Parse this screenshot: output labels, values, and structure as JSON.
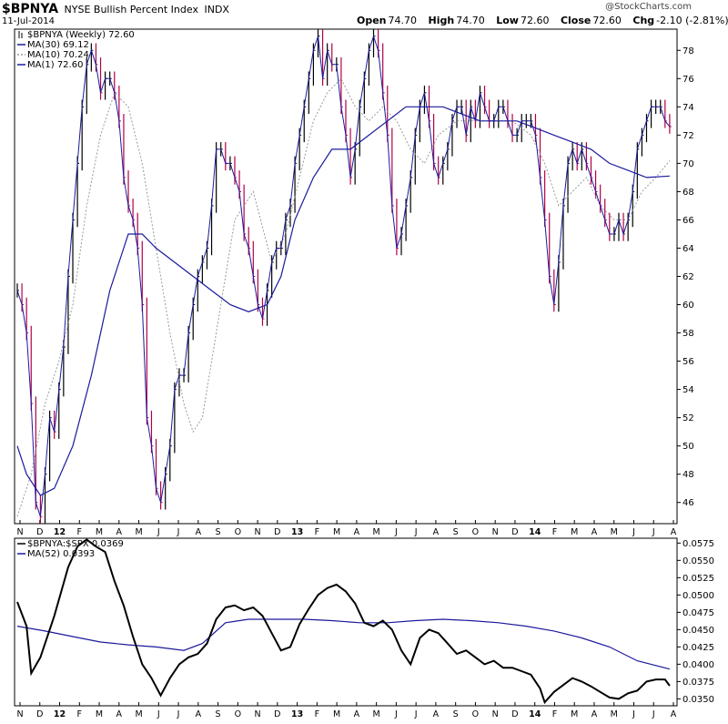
{
  "header": {
    "symbol": "$BPNYA",
    "name": "NYSE Bullish Percent Index",
    "exchange": "INDX",
    "date": "11-Jul-2014",
    "open_label": "Open",
    "open": "74.70",
    "high_label": "High",
    "high": "74.70",
    "low_label": "Low",
    "low": "72.60",
    "close_label": "Close",
    "close": "72.60",
    "chg_label": "Chg",
    "chg": "-2.10 (-2.81%)",
    "credit": "@StockCharts.com"
  },
  "colors": {
    "price": "#000000",
    "down": "#b0004a",
    "ma30": "#1a1a9c",
    "ma10": "#999999",
    "ratio": "#000000",
    "ratio_ma": "#1a1a9c"
  },
  "chart_data": [
    {
      "type": "line",
      "panel": "price",
      "legend": [
        {
          "text": "$BPNYA (Weekly) 72.60",
          "icon": "bar-icon"
        },
        {
          "text": "MA(30) 69.12",
          "style": "solid"
        },
        {
          "text": "MA(10) 70.24",
          "style": "dotted"
        },
        {
          "text": "MA(1) 72.60",
          "style": "solid"
        }
      ],
      "ylim": [
        44.5,
        79.5
      ],
      "yticks": [
        46,
        48,
        50,
        52,
        54,
        56,
        58,
        60,
        62,
        64,
        66,
        68,
        70,
        72,
        74,
        76,
        78
      ],
      "x_labels": [
        "N",
        "D",
        "12",
        "F",
        "M",
        "A",
        "M",
        "J",
        "J",
        "A",
        "S",
        "O",
        "N",
        "D",
        "13",
        "F",
        "M",
        "A",
        "M",
        "J",
        "J",
        "A",
        "S",
        "O",
        "N",
        "D",
        "14",
        "F",
        "M",
        "A",
        "M",
        "J",
        "J",
        "A"
      ],
      "x_bold": [
        "12",
        "13",
        "14"
      ],
      "n_weeks": 143,
      "anchors": [
        [
          0,
          61
        ],
        [
          1,
          60
        ],
        [
          2,
          58
        ],
        [
          3,
          53
        ],
        [
          4,
          46
        ],
        [
          5,
          45
        ],
        [
          6,
          48
        ],
        [
          7,
          52
        ],
        [
          8,
          51
        ],
        [
          9,
          54
        ],
        [
          10,
          57
        ],
        [
          11,
          62
        ],
        [
          12,
          66
        ],
        [
          13,
          70
        ],
        [
          14,
          74
        ],
        [
          15,
          77
        ],
        [
          16,
          78
        ],
        [
          17,
          77
        ],
        [
          18,
          75
        ],
        [
          19,
          76
        ],
        [
          20,
          76
        ],
        [
          21,
          75
        ],
        [
          22,
          73
        ],
        [
          23,
          69
        ],
        [
          24,
          67
        ],
        [
          25,
          66
        ],
        [
          26,
          64
        ],
        [
          27,
          60
        ],
        [
          28,
          52
        ],
        [
          29,
          50
        ],
        [
          30,
          47
        ],
        [
          31,
          46
        ],
        [
          32,
          48
        ],
        [
          33,
          50
        ],
        [
          34,
          54
        ],
        [
          35,
          55
        ],
        [
          36,
          55
        ],
        [
          37,
          58
        ],
        [
          38,
          60
        ],
        [
          39,
          62
        ],
        [
          40,
          63
        ],
        [
          41,
          64
        ],
        [
          42,
          67
        ],
        [
          43,
          71
        ],
        [
          44,
          71
        ],
        [
          45,
          70
        ],
        [
          46,
          70
        ],
        [
          47,
          69
        ],
        [
          48,
          68
        ],
        [
          49,
          65
        ],
        [
          50,
          64
        ],
        [
          51,
          62
        ],
        [
          52,
          60
        ],
        [
          53,
          59
        ],
        [
          54,
          61
        ],
        [
          55,
          63
        ],
        [
          56,
          64
        ],
        [
          57,
          64
        ],
        [
          58,
          66
        ],
        [
          59,
          67
        ],
        [
          60,
          70
        ],
        [
          61,
          72
        ],
        [
          62,
          74
        ],
        [
          63,
          76
        ],
        [
          64,
          78
        ],
        [
          65,
          79
        ],
        [
          66,
          76
        ],
        [
          67,
          78
        ],
        [
          68,
          77
        ],
        [
          69,
          77
        ],
        [
          70,
          74
        ],
        [
          71,
          72
        ],
        [
          72,
          69
        ],
        [
          73,
          71
        ],
        [
          74,
          74
        ],
        [
          75,
          76
        ],
        [
          76,
          78
        ],
        [
          77,
          79
        ],
        [
          78,
          78
        ],
        [
          79,
          75
        ],
        [
          80,
          72
        ],
        [
          81,
          67
        ],
        [
          82,
          64
        ],
        [
          83,
          65
        ],
        [
          84,
          67
        ],
        [
          85,
          69
        ],
        [
          86,
          72
        ],
        [
          87,
          74
        ],
        [
          88,
          75
        ],
        [
          89,
          73
        ],
        [
          90,
          70
        ],
        [
          91,
          69
        ],
        [
          92,
          70
        ],
        [
          93,
          71
        ],
        [
          94,
          73
        ],
        [
          95,
          74
        ],
        [
          96,
          74
        ],
        [
          97,
          72
        ],
        [
          98,
          74
        ],
        [
          99,
          73
        ],
        [
          100,
          75
        ],
        [
          101,
          74
        ],
        [
          102,
          73
        ],
        [
          103,
          73
        ],
        [
          104,
          74
        ],
        [
          105,
          74
        ],
        [
          106,
          73
        ],
        [
          107,
          72
        ],
        [
          108,
          72
        ],
        [
          109,
          73
        ],
        [
          110,
          73
        ],
        [
          111,
          73
        ],
        [
          112,
          72
        ],
        [
          113,
          69
        ],
        [
          114,
          66
        ],
        [
          115,
          62
        ],
        [
          116,
          60
        ],
        [
          117,
          63
        ],
        [
          118,
          67
        ],
        [
          119,
          70
        ],
        [
          120,
          71
        ],
        [
          121,
          70
        ],
        [
          122,
          71
        ],
        [
          123,
          70
        ],
        [
          124,
          69
        ],
        [
          125,
          68
        ],
        [
          126,
          67
        ],
        [
          127,
          66
        ],
        [
          128,
          65
        ],
        [
          129,
          65
        ],
        [
          130,
          66
        ],
        [
          131,
          65
        ],
        [
          132,
          66
        ],
        [
          133,
          68
        ],
        [
          134,
          71
        ],
        [
          135,
          72
        ],
        [
          136,
          73
        ],
        [
          137,
          74
        ],
        [
          138,
          74
        ],
        [
          139,
          74
        ],
        [
          140,
          73
        ],
        [
          141,
          72.6
        ]
      ],
      "ma30": [
        [
          0,
          50
        ],
        [
          2,
          48
        ],
        [
          5,
          46.5
        ],
        [
          8,
          47
        ],
        [
          12,
          50
        ],
        [
          16,
          55
        ],
        [
          20,
          61
        ],
        [
          24,
          65
        ],
        [
          27,
          65
        ],
        [
          30,
          64
        ],
        [
          34,
          63
        ],
        [
          38,
          62
        ],
        [
          42,
          61
        ],
        [
          46,
          60
        ],
        [
          50,
          59.5
        ],
        [
          54,
          60
        ],
        [
          57,
          62
        ],
        [
          60,
          66
        ],
        [
          64,
          69
        ],
        [
          68,
          71
        ],
        [
          72,
          71
        ],
        [
          76,
          72
        ],
        [
          80,
          73
        ],
        [
          84,
          74
        ],
        [
          88,
          74
        ],
        [
          92,
          74
        ],
        [
          96,
          73.5
        ],
        [
          100,
          73
        ],
        [
          104,
          73
        ],
        [
          108,
          73
        ],
        [
          112,
          72.5
        ],
        [
          116,
          72
        ],
        [
          120,
          71.5
        ],
        [
          124,
          71
        ],
        [
          128,
          70
        ],
        [
          132,
          69.5
        ],
        [
          136,
          69
        ],
        [
          141,
          69.1
        ]
      ],
      "ma10": [
        [
          0,
          45
        ],
        [
          3,
          48
        ],
        [
          6,
          53
        ],
        [
          9,
          56
        ],
        [
          12,
          60
        ],
        [
          15,
          67
        ],
        [
          18,
          72
        ],
        [
          21,
          75
        ],
        [
          24,
          74
        ],
        [
          27,
          70
        ],
        [
          30,
          64
        ],
        [
          33,
          58
        ],
        [
          36,
          53
        ],
        [
          38,
          51
        ],
        [
          40,
          52
        ],
        [
          43,
          58
        ],
        [
          47,
          66
        ],
        [
          51,
          68
        ],
        [
          55,
          63
        ],
        [
          58,
          65
        ],
        [
          61,
          69
        ],
        [
          64,
          73
        ],
        [
          67,
          75
        ],
        [
          70,
          76
        ],
        [
          73,
          74
        ],
        [
          76,
          73
        ],
        [
          79,
          74
        ],
        [
          82,
          73
        ],
        [
          85,
          71
        ],
        [
          88,
          70
        ],
        [
          91,
          72
        ],
        [
          95,
          73
        ],
        [
          99,
          73
        ],
        [
          103,
          73
        ],
        [
          107,
          73
        ],
        [
          111,
          72
        ],
        [
          114,
          70
        ],
        [
          117,
          67
        ],
        [
          120,
          68
        ],
        [
          123,
          69
        ],
        [
          126,
          67
        ],
        [
          129,
          66
        ],
        [
          132,
          66
        ],
        [
          135,
          68
        ],
        [
          138,
          69
        ],
        [
          141,
          70.2
        ]
      ]
    },
    {
      "type": "line",
      "panel": "ratio",
      "legend": [
        {
          "text": "$BPNYA:$SPX 0.0369",
          "style": "solid"
        },
        {
          "text": "MA(52) 0.0393",
          "style": "solid"
        }
      ],
      "ylim": [
        0.034,
        0.0582
      ],
      "yticks": [
        "0.0575",
        "0.0550",
        "0.0525",
        "0.0500",
        "0.0475",
        "0.0450",
        "0.0425",
        "0.0400",
        "0.0375",
        "0.0350"
      ],
      "ratio": [
        [
          0,
          0.049
        ],
        [
          2,
          0.0455
        ],
        [
          3,
          0.0387
        ],
        [
          5,
          0.041
        ],
        [
          8,
          0.047
        ],
        [
          11,
          0.054
        ],
        [
          13,
          0.057
        ],
        [
          15,
          0.058
        ],
        [
          17,
          0.057
        ],
        [
          19,
          0.0562
        ],
        [
          21,
          0.052
        ],
        [
          23,
          0.0485
        ],
        [
          25,
          0.044
        ],
        [
          27,
          0.04
        ],
        [
          29,
          0.038
        ],
        [
          31,
          0.0355
        ],
        [
          33,
          0.038
        ],
        [
          35,
          0.04
        ],
        [
          37,
          0.041
        ],
        [
          39,
          0.0415
        ],
        [
          41,
          0.043
        ],
        [
          43,
          0.0465
        ],
        [
          45,
          0.0482
        ],
        [
          47,
          0.0485
        ],
        [
          49,
          0.0478
        ],
        [
          51,
          0.0482
        ],
        [
          53,
          0.047
        ],
        [
          55,
          0.0445
        ],
        [
          57,
          0.042
        ],
        [
          59,
          0.0425
        ],
        [
          61,
          0.0458
        ],
        [
          63,
          0.048
        ],
        [
          65,
          0.05
        ],
        [
          67,
          0.051
        ],
        [
          69,
          0.0515
        ],
        [
          71,
          0.0505
        ],
        [
          73,
          0.0488
        ],
        [
          75,
          0.046
        ],
        [
          77,
          0.0455
        ],
        [
          79,
          0.0463
        ],
        [
          81,
          0.045
        ],
        [
          83,
          0.042
        ],
        [
          85,
          0.04
        ],
        [
          87,
          0.0438
        ],
        [
          89,
          0.045
        ],
        [
          91,
          0.0445
        ],
        [
          93,
          0.043
        ],
        [
          95,
          0.0415
        ],
        [
          97,
          0.042
        ],
        [
          99,
          0.041
        ],
        [
          101,
          0.04
        ],
        [
          103,
          0.0405
        ],
        [
          105,
          0.0395
        ],
        [
          107,
          0.0395
        ],
        [
          109,
          0.039
        ],
        [
          111,
          0.0385
        ],
        [
          113,
          0.0365
        ],
        [
          114,
          0.0345
        ],
        [
          116,
          0.036
        ],
        [
          118,
          0.037
        ],
        [
          120,
          0.038
        ],
        [
          122,
          0.0375
        ],
        [
          124,
          0.0368
        ],
        [
          126,
          0.036
        ],
        [
          128,
          0.0352
        ],
        [
          130,
          0.035
        ],
        [
          132,
          0.0358
        ],
        [
          134,
          0.0362
        ],
        [
          136,
          0.0375
        ],
        [
          138,
          0.0378
        ],
        [
          140,
          0.0378
        ],
        [
          141,
          0.0369
        ]
      ],
      "ratio_ma": [
        [
          0,
          0.0455
        ],
        [
          6,
          0.0448
        ],
        [
          12,
          0.044
        ],
        [
          18,
          0.0432
        ],
        [
          24,
          0.0428
        ],
        [
          30,
          0.0425
        ],
        [
          36,
          0.042
        ],
        [
          40,
          0.043
        ],
        [
          45,
          0.046
        ],
        [
          50,
          0.0465
        ],
        [
          56,
          0.0465
        ],
        [
          62,
          0.0465
        ],
        [
          68,
          0.0463
        ],
        [
          74,
          0.046
        ],
        [
          80,
          0.046
        ],
        [
          86,
          0.0463
        ],
        [
          92,
          0.0465
        ],
        [
          98,
          0.0463
        ],
        [
          104,
          0.046
        ],
        [
          110,
          0.0455
        ],
        [
          116,
          0.0448
        ],
        [
          122,
          0.0438
        ],
        [
          128,
          0.0425
        ],
        [
          134,
          0.0405
        ],
        [
          141,
          0.0393
        ]
      ]
    }
  ]
}
